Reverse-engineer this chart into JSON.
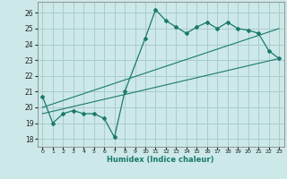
{
  "title": "",
  "xlabel": "Humidex (Indice chaleur)",
  "background_color": "#cce8e8",
  "grid_color": "#aacccc",
  "line_color": "#1a7a6a",
  "xlim": [
    -0.5,
    23.5
  ],
  "ylim": [
    17.5,
    26.7
  ],
  "xticks": [
    0,
    1,
    2,
    3,
    4,
    5,
    6,
    7,
    8,
    9,
    10,
    11,
    12,
    13,
    14,
    15,
    16,
    17,
    18,
    19,
    20,
    21,
    22,
    23
  ],
  "yticks": [
    18,
    19,
    20,
    21,
    22,
    23,
    24,
    25,
    26
  ],
  "series1_x": [
    0,
    1,
    2,
    3,
    4,
    5,
    6,
    7,
    8,
    10,
    11,
    12,
    13,
    14,
    15,
    16,
    17,
    18,
    19,
    20,
    21,
    22,
    23
  ],
  "series1_y": [
    20.7,
    19.0,
    19.6,
    19.8,
    19.6,
    19.6,
    19.3,
    18.1,
    21.0,
    24.4,
    26.2,
    25.5,
    25.1,
    24.7,
    25.1,
    25.4,
    25.0,
    25.4,
    25.0,
    24.9,
    24.7,
    23.6,
    23.1
  ],
  "series2_x": [
    0,
    23
  ],
  "series2_y": [
    19.6,
    23.1
  ],
  "series3_x": [
    0,
    23
  ],
  "series3_y": [
    20.0,
    25.0
  ]
}
